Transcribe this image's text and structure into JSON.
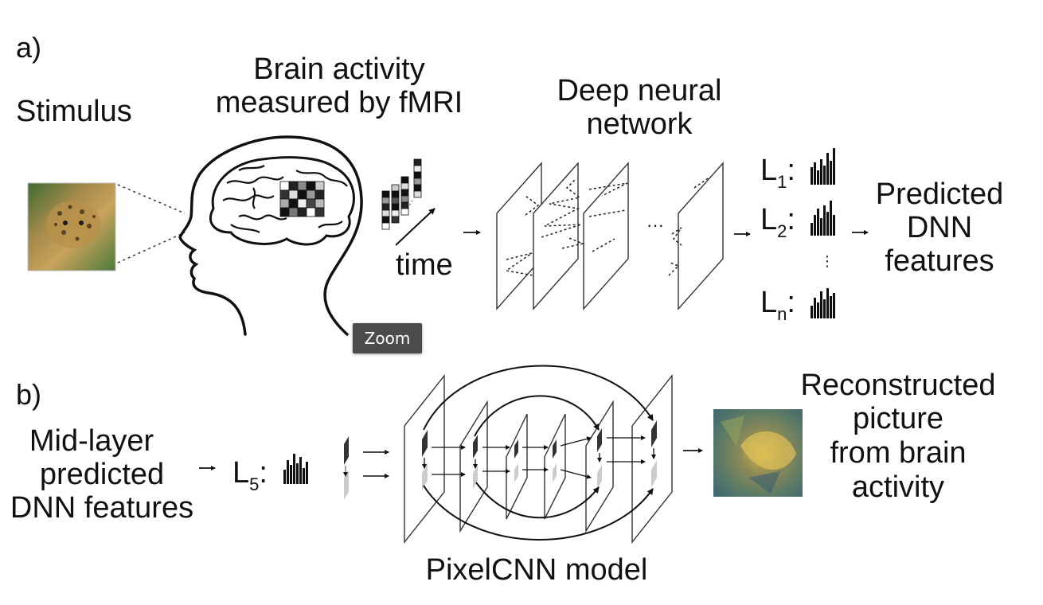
{
  "panel_a": {
    "letter": "a)",
    "stimulus_label": "Stimulus",
    "brain_label_line1": "Brain activity",
    "brain_label_line2": "measured by fMRI",
    "time_label": "time",
    "dnn_label_line1": "Deep neural",
    "dnn_label_line2": "network",
    "layers": [
      {
        "name": "L",
        "sub": "1",
        "colon": ":"
      },
      {
        "name": "L",
        "sub": "2",
        "colon": ":"
      },
      {
        "name": "L",
        "sub": "n",
        "colon": ":"
      }
    ],
    "predicted_line1": "Predicted",
    "predicted_line2": "DNN",
    "predicted_line3": "features"
  },
  "panel_b": {
    "letter": "b)",
    "mid_line1": "Mid-layer",
    "mid_line2": "predicted",
    "mid_line3": "DNN features",
    "layer": {
      "name": "L",
      "sub": "5",
      "colon": ":"
    },
    "model_label": "PixelCNN model",
    "recon_line1": "Reconstructed",
    "recon_line2": "picture",
    "recon_line3": "from brain",
    "recon_line4": "activity"
  },
  "tooltip": {
    "label": "Zoom"
  }
}
